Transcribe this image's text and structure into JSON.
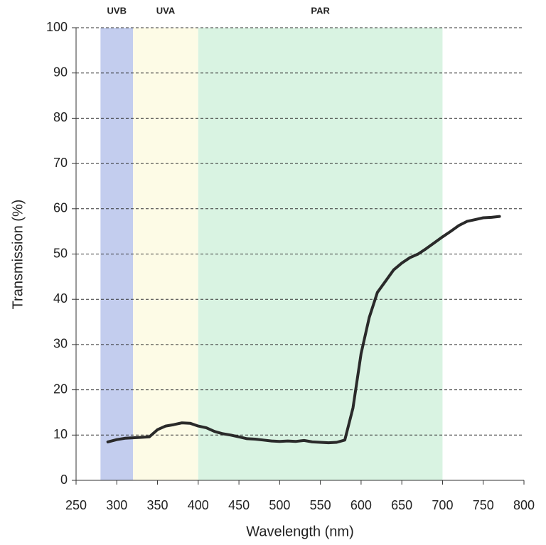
{
  "chart_data": {
    "type": "line",
    "xlabel": "Wavelength (nm)",
    "ylabel": "Transmission (%)",
    "bands": [
      {
        "name": "UVB",
        "start": 280,
        "end": 320,
        "color": "#c3cdee"
      },
      {
        "name": "UVA",
        "start": 320,
        "end": 400,
        "color": "#fdfbe6"
      },
      {
        "name": "PAR",
        "start": 400,
        "end": 700,
        "color": "#d9f3e2"
      }
    ],
    "x": [
      289,
      300,
      310,
      320,
      330,
      340,
      350,
      360,
      370,
      380,
      390,
      400,
      410,
      420,
      430,
      440,
      450,
      460,
      470,
      480,
      490,
      500,
      510,
      520,
      530,
      540,
      550,
      560,
      570,
      580,
      590,
      600,
      610,
      620,
      630,
      640,
      650,
      660,
      670,
      680,
      690,
      700,
      710,
      720,
      730,
      740,
      750,
      760,
      770
    ],
    "values": [
      8.5,
      9.0,
      9.3,
      9.4,
      9.5,
      9.6,
      11.2,
      12.0,
      12.3,
      12.7,
      12.6,
      12.0,
      11.6,
      10.8,
      10.3,
      10.0,
      9.6,
      9.2,
      9.1,
      8.9,
      8.7,
      8.6,
      8.7,
      8.6,
      8.8,
      8.5,
      8.4,
      8.3,
      8.4,
      8.9,
      16,
      28,
      36,
      41.5,
      44,
      46.5,
      48,
      49.2,
      50.0,
      51.2,
      52.5,
      53.8,
      55,
      56.3,
      57.2,
      57.6,
      58,
      58.1,
      58.3
    ],
    "color": "#2a2a2a",
    "xlim": [
      250,
      800
    ],
    "xticks": [
      250,
      300,
      350,
      400,
      450,
      500,
      550,
      600,
      650,
      700,
      750,
      800
    ],
    "ylim": [
      0,
      100
    ],
    "yticks": [
      0,
      10,
      20,
      30,
      40,
      50,
      60,
      70,
      80,
      90,
      100
    ],
    "grid": true
  }
}
